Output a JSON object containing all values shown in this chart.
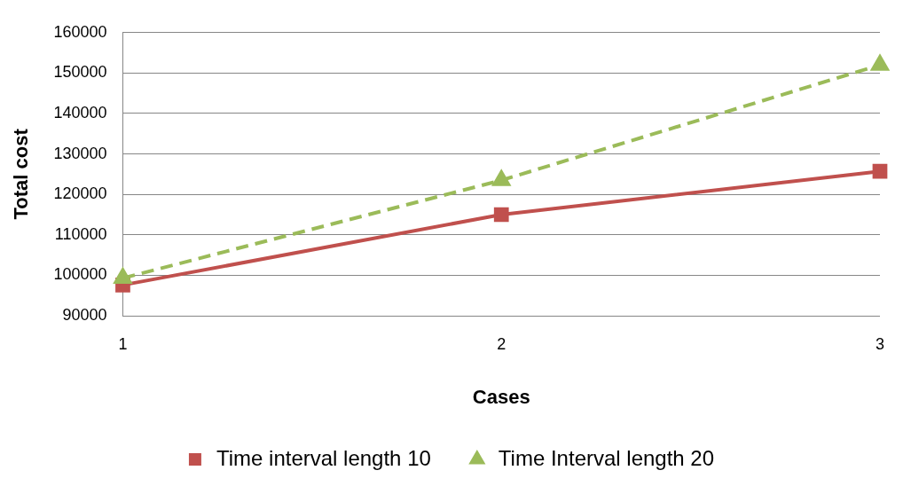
{
  "chart_data": {
    "type": "line",
    "xlabel": "Cases",
    "ylabel": "Total cost",
    "categories": [
      "1",
      "2",
      "3"
    ],
    "series": [
      {
        "name": "Time interval length 10",
        "color": "#c0504d",
        "values": [
          97600,
          115000,
          125700
        ],
        "marker": "square",
        "line_style": "solid"
      },
      {
        "name": "Time Interval length 20",
        "color": "#9bbb59",
        "values": [
          99300,
          123500,
          152000
        ],
        "marker": "triangle",
        "line_style": "dashed"
      }
    ],
    "ylim": [
      90000,
      160000
    ],
    "yticks": [
      90000,
      100000,
      110000,
      120000,
      130000,
      140000,
      150000,
      160000
    ],
    "grid": "y",
    "legend": "bottom"
  }
}
